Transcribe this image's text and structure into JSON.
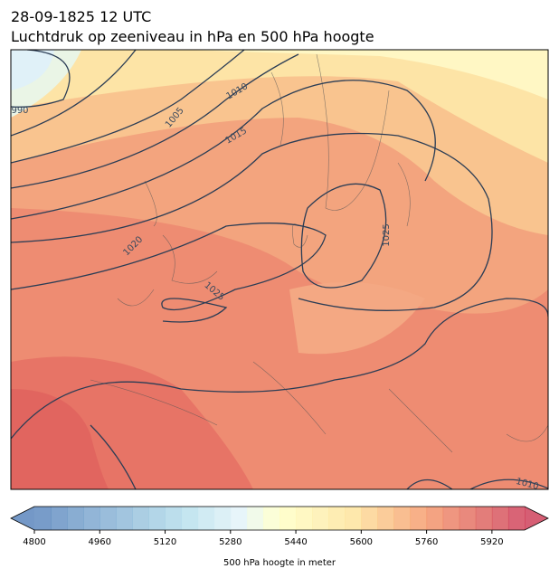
{
  "header": {
    "date": "28-09-1825 12 UTC",
    "title": "Luchtdruk op zeeniveau in hPa en 500 hPa hoogte"
  },
  "map": {
    "contour_labels": [
      990,
      1005,
      1010,
      1015,
      1020,
      1025,
      1025,
      1010
    ]
  },
  "colorbar": {
    "lim": [
      4800,
      6000
    ],
    "ticks": [
      4800,
      4960,
      5120,
      5280,
      5440,
      5600,
      5760,
      5920
    ],
    "label": "500 hPa hoogte in meter"
  }
}
